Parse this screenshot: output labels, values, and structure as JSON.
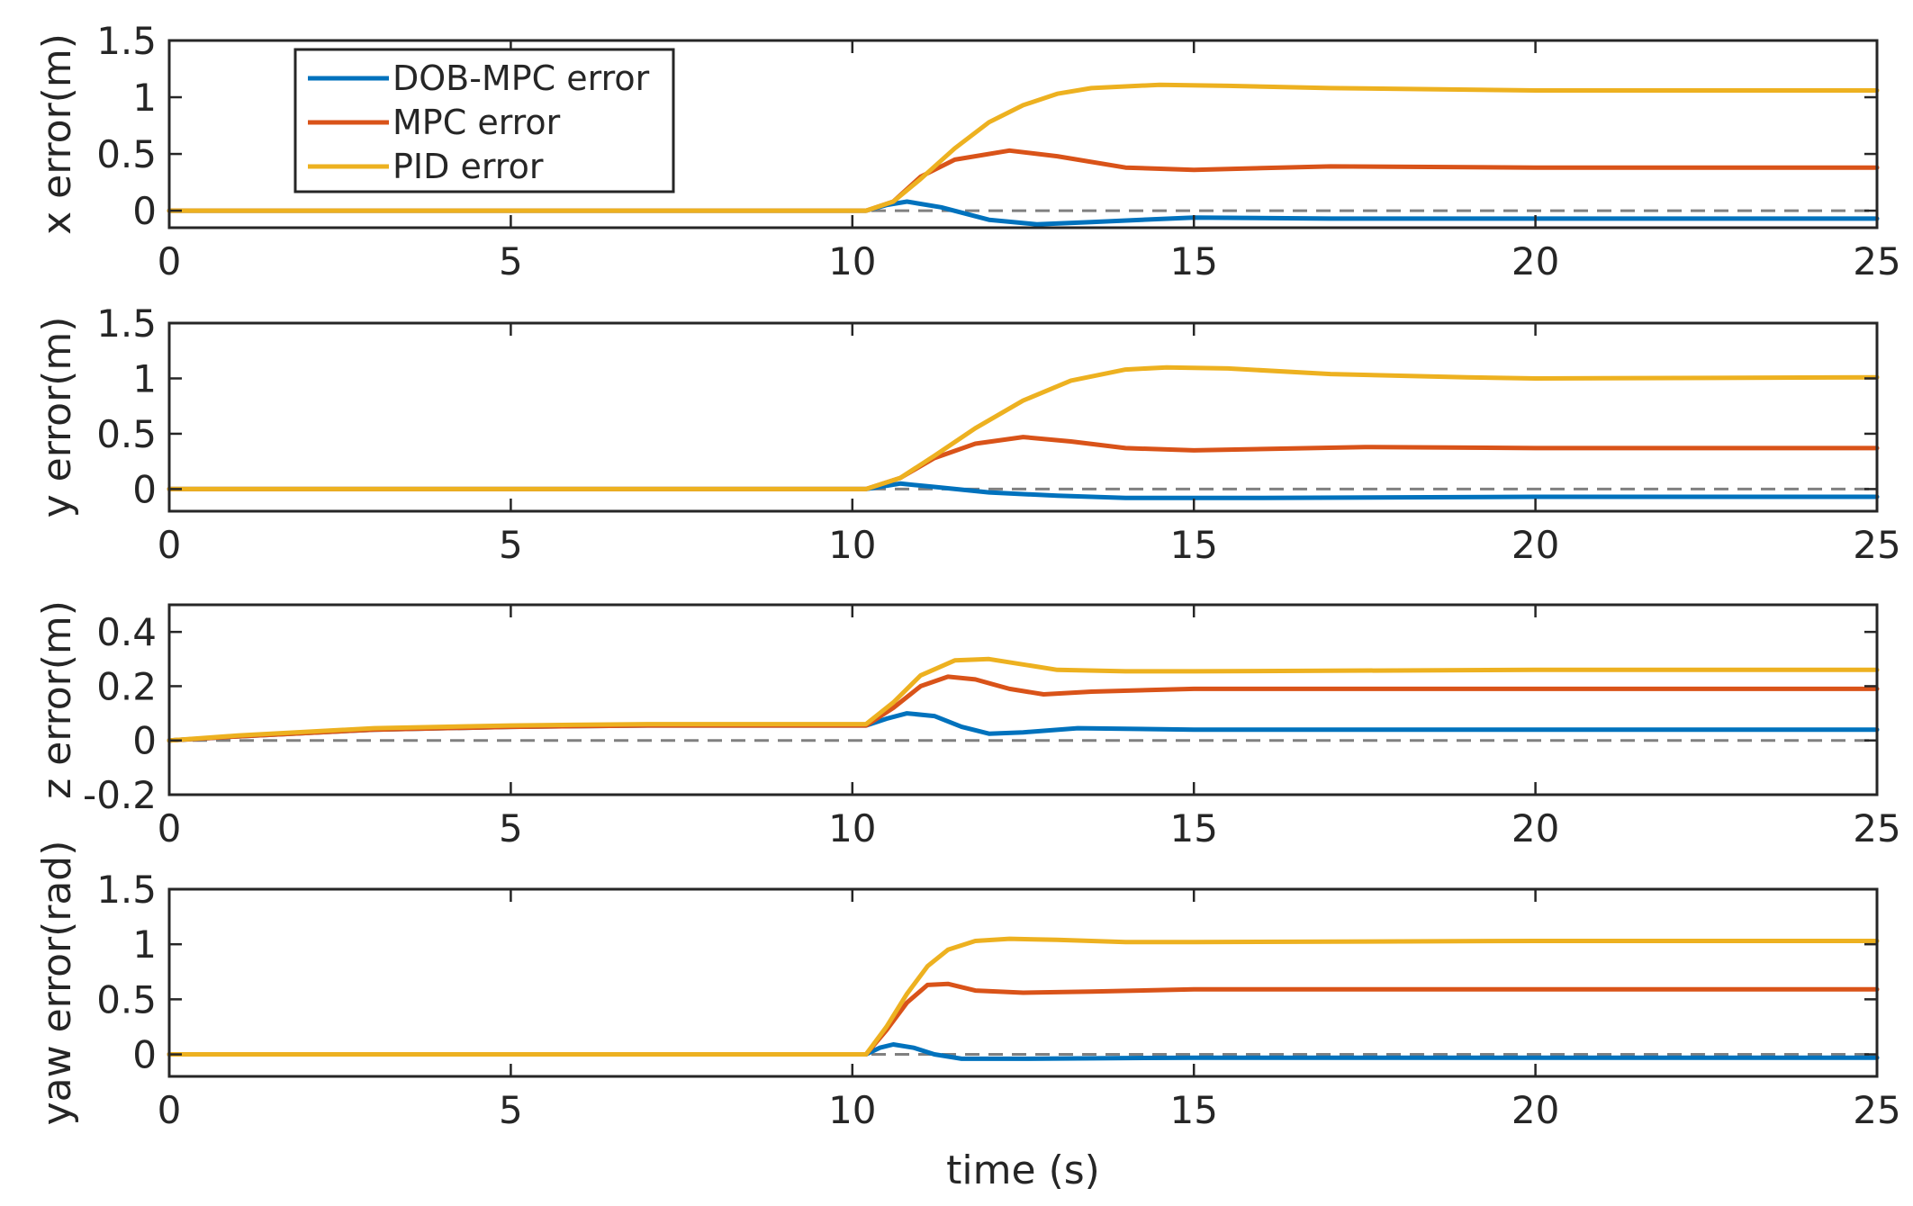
{
  "chart_data": {
    "type": "line",
    "xlabel": "time (s)",
    "xlim": [
      0,
      25
    ],
    "xticks": [
      0,
      5,
      10,
      15,
      20,
      25
    ],
    "legend": {
      "placement": "top-left",
      "panel": 0
    },
    "colors": {
      "DOB-MPC error": "#0072BD",
      "MPC error": "#D95319",
      "PID error": "#EDB120",
      "reference": "#808080"
    },
    "panels": [
      {
        "ylabel": "x error(m)",
        "ylim": [
          -0.15,
          1.5
        ],
        "yticks": [
          0,
          0.5,
          1,
          1.5
        ],
        "reference_line": 0,
        "series": [
          {
            "name": "DOB-MPC error",
            "x": [
              0,
              10.2,
              10.5,
              10.8,
              11.3,
              12.0,
              12.7,
              13.5,
              15.0,
              17.0,
              20.0,
              25.0
            ],
            "y": [
              0,
              0,
              0.05,
              0.08,
              0.03,
              -0.08,
              -0.12,
              -0.1,
              -0.06,
              -0.07,
              -0.07,
              -0.07
            ]
          },
          {
            "name": "MPC error",
            "x": [
              0,
              10.2,
              10.6,
              11.0,
              11.5,
              12.3,
              13.0,
              14.0,
              15.0,
              17.0,
              20.0,
              25.0
            ],
            "y": [
              0,
              0,
              0.08,
              0.3,
              0.45,
              0.53,
              0.48,
              0.38,
              0.36,
              0.39,
              0.38,
              0.38
            ]
          },
          {
            "name": "PID error",
            "x": [
              0,
              10.2,
              10.6,
              11.0,
              11.5,
              12.0,
              12.5,
              13.0,
              13.5,
              14.5,
              15.5,
              17.0,
              20.0,
              25.0
            ],
            "y": [
              0,
              0,
              0.08,
              0.28,
              0.55,
              0.78,
              0.93,
              1.03,
              1.08,
              1.11,
              1.1,
              1.08,
              1.06,
              1.06
            ]
          }
        ]
      },
      {
        "ylabel": "y error(m)",
        "ylim": [
          -0.2,
          1.5
        ],
        "yticks": [
          0,
          0.5,
          1,
          1.5
        ],
        "reference_line": 0,
        "series": [
          {
            "name": "DOB-MPC error",
            "x": [
              0,
              10.2,
              10.7,
              11.2,
              12.0,
              13.0,
              14.0,
              16.0,
              20.0,
              25.0
            ],
            "y": [
              0,
              0,
              0.05,
              0.02,
              -0.03,
              -0.06,
              -0.08,
              -0.08,
              -0.07,
              -0.07
            ]
          },
          {
            "name": "MPC error",
            "x": [
              0,
              10.2,
              10.7,
              11.2,
              11.8,
              12.5,
              13.2,
              14.0,
              15.0,
              17.5,
              20.0,
              25.0
            ],
            "y": [
              0,
              0,
              0.1,
              0.28,
              0.41,
              0.47,
              0.43,
              0.37,
              0.35,
              0.38,
              0.37,
              0.37
            ]
          },
          {
            "name": "PID error",
            "x": [
              0,
              10.2,
              10.7,
              11.2,
              11.8,
              12.5,
              13.2,
              14.0,
              14.6,
              15.5,
              17.0,
              19.0,
              20.0,
              25.0
            ],
            "y": [
              0,
              0,
              0.1,
              0.3,
              0.55,
              0.8,
              0.98,
              1.08,
              1.1,
              1.09,
              1.04,
              1.01,
              1.0,
              1.01
            ]
          }
        ]
      },
      {
        "ylabel": "z error(m)",
        "ylim": [
          -0.2,
          0.5
        ],
        "yticks": [
          -0.2,
          0,
          0.2,
          0.4
        ],
        "reference_line": 0,
        "series": [
          {
            "name": "DOB-MPC error",
            "x": [
              0,
              1,
              3,
              5,
              7,
              10.2,
              10.5,
              10.8,
              11.2,
              11.6,
              12.0,
              12.5,
              13.3,
              15.0,
              20.0,
              25.0
            ],
            "y": [
              0,
              0.015,
              0.04,
              0.05,
              0.055,
              0.055,
              0.08,
              0.1,
              0.09,
              0.05,
              0.025,
              0.03,
              0.045,
              0.04,
              0.04,
              0.04
            ]
          },
          {
            "name": "MPC error",
            "x": [
              0,
              1,
              3,
              5,
              7,
              10.2,
              10.6,
              11.0,
              11.4,
              11.8,
              12.3,
              12.8,
              13.5,
              15.0,
              20.0,
              25.0
            ],
            "y": [
              0,
              0.015,
              0.04,
              0.05,
              0.055,
              0.055,
              0.12,
              0.2,
              0.235,
              0.225,
              0.19,
              0.17,
              0.18,
              0.19,
              0.19,
              0.19
            ]
          },
          {
            "name": "PID error",
            "x": [
              0,
              1,
              3,
              5,
              7,
              10.2,
              10.6,
              11.0,
              11.5,
              12.0,
              12.5,
              13.0,
              14.0,
              15.0,
              20.0,
              25.0
            ],
            "y": [
              0,
              0.018,
              0.045,
              0.055,
              0.06,
              0.06,
              0.14,
              0.24,
              0.295,
              0.3,
              0.28,
              0.26,
              0.255,
              0.255,
              0.26,
              0.26
            ]
          }
        ]
      },
      {
        "ylabel": "yaw error(rad)",
        "ylim": [
          -0.2,
          1.5
        ],
        "yticks": [
          0,
          0.5,
          1,
          1.5
        ],
        "reference_line": 0,
        "series": [
          {
            "name": "DOB-MPC error",
            "x": [
              0,
              10.2,
              10.4,
              10.6,
              10.9,
              11.2,
              11.6,
              12.5,
              15.0,
              20.0,
              25.0
            ],
            "y": [
              0,
              0,
              0.06,
              0.09,
              0.06,
              0.0,
              -0.04,
              -0.04,
              -0.03,
              -0.03,
              -0.03
            ]
          },
          {
            "name": "MPC error",
            "x": [
              0,
              10.2,
              10.5,
              10.8,
              11.1,
              11.4,
              11.8,
              12.5,
              13.5,
              15.0,
              20.0,
              25.0
            ],
            "y": [
              0,
              0,
              0.22,
              0.47,
              0.63,
              0.64,
              0.58,
              0.56,
              0.57,
              0.59,
              0.59,
              0.59
            ]
          },
          {
            "name": "PID error",
            "x": [
              0,
              10.2,
              10.5,
              10.8,
              11.1,
              11.4,
              11.8,
              12.3,
              13.0,
              14.0,
              15.0,
              20.0,
              25.0
            ],
            "y": [
              0,
              0,
              0.25,
              0.55,
              0.8,
              0.95,
              1.03,
              1.05,
              1.04,
              1.02,
              1.02,
              1.03,
              1.03
            ]
          }
        ]
      }
    ]
  }
}
